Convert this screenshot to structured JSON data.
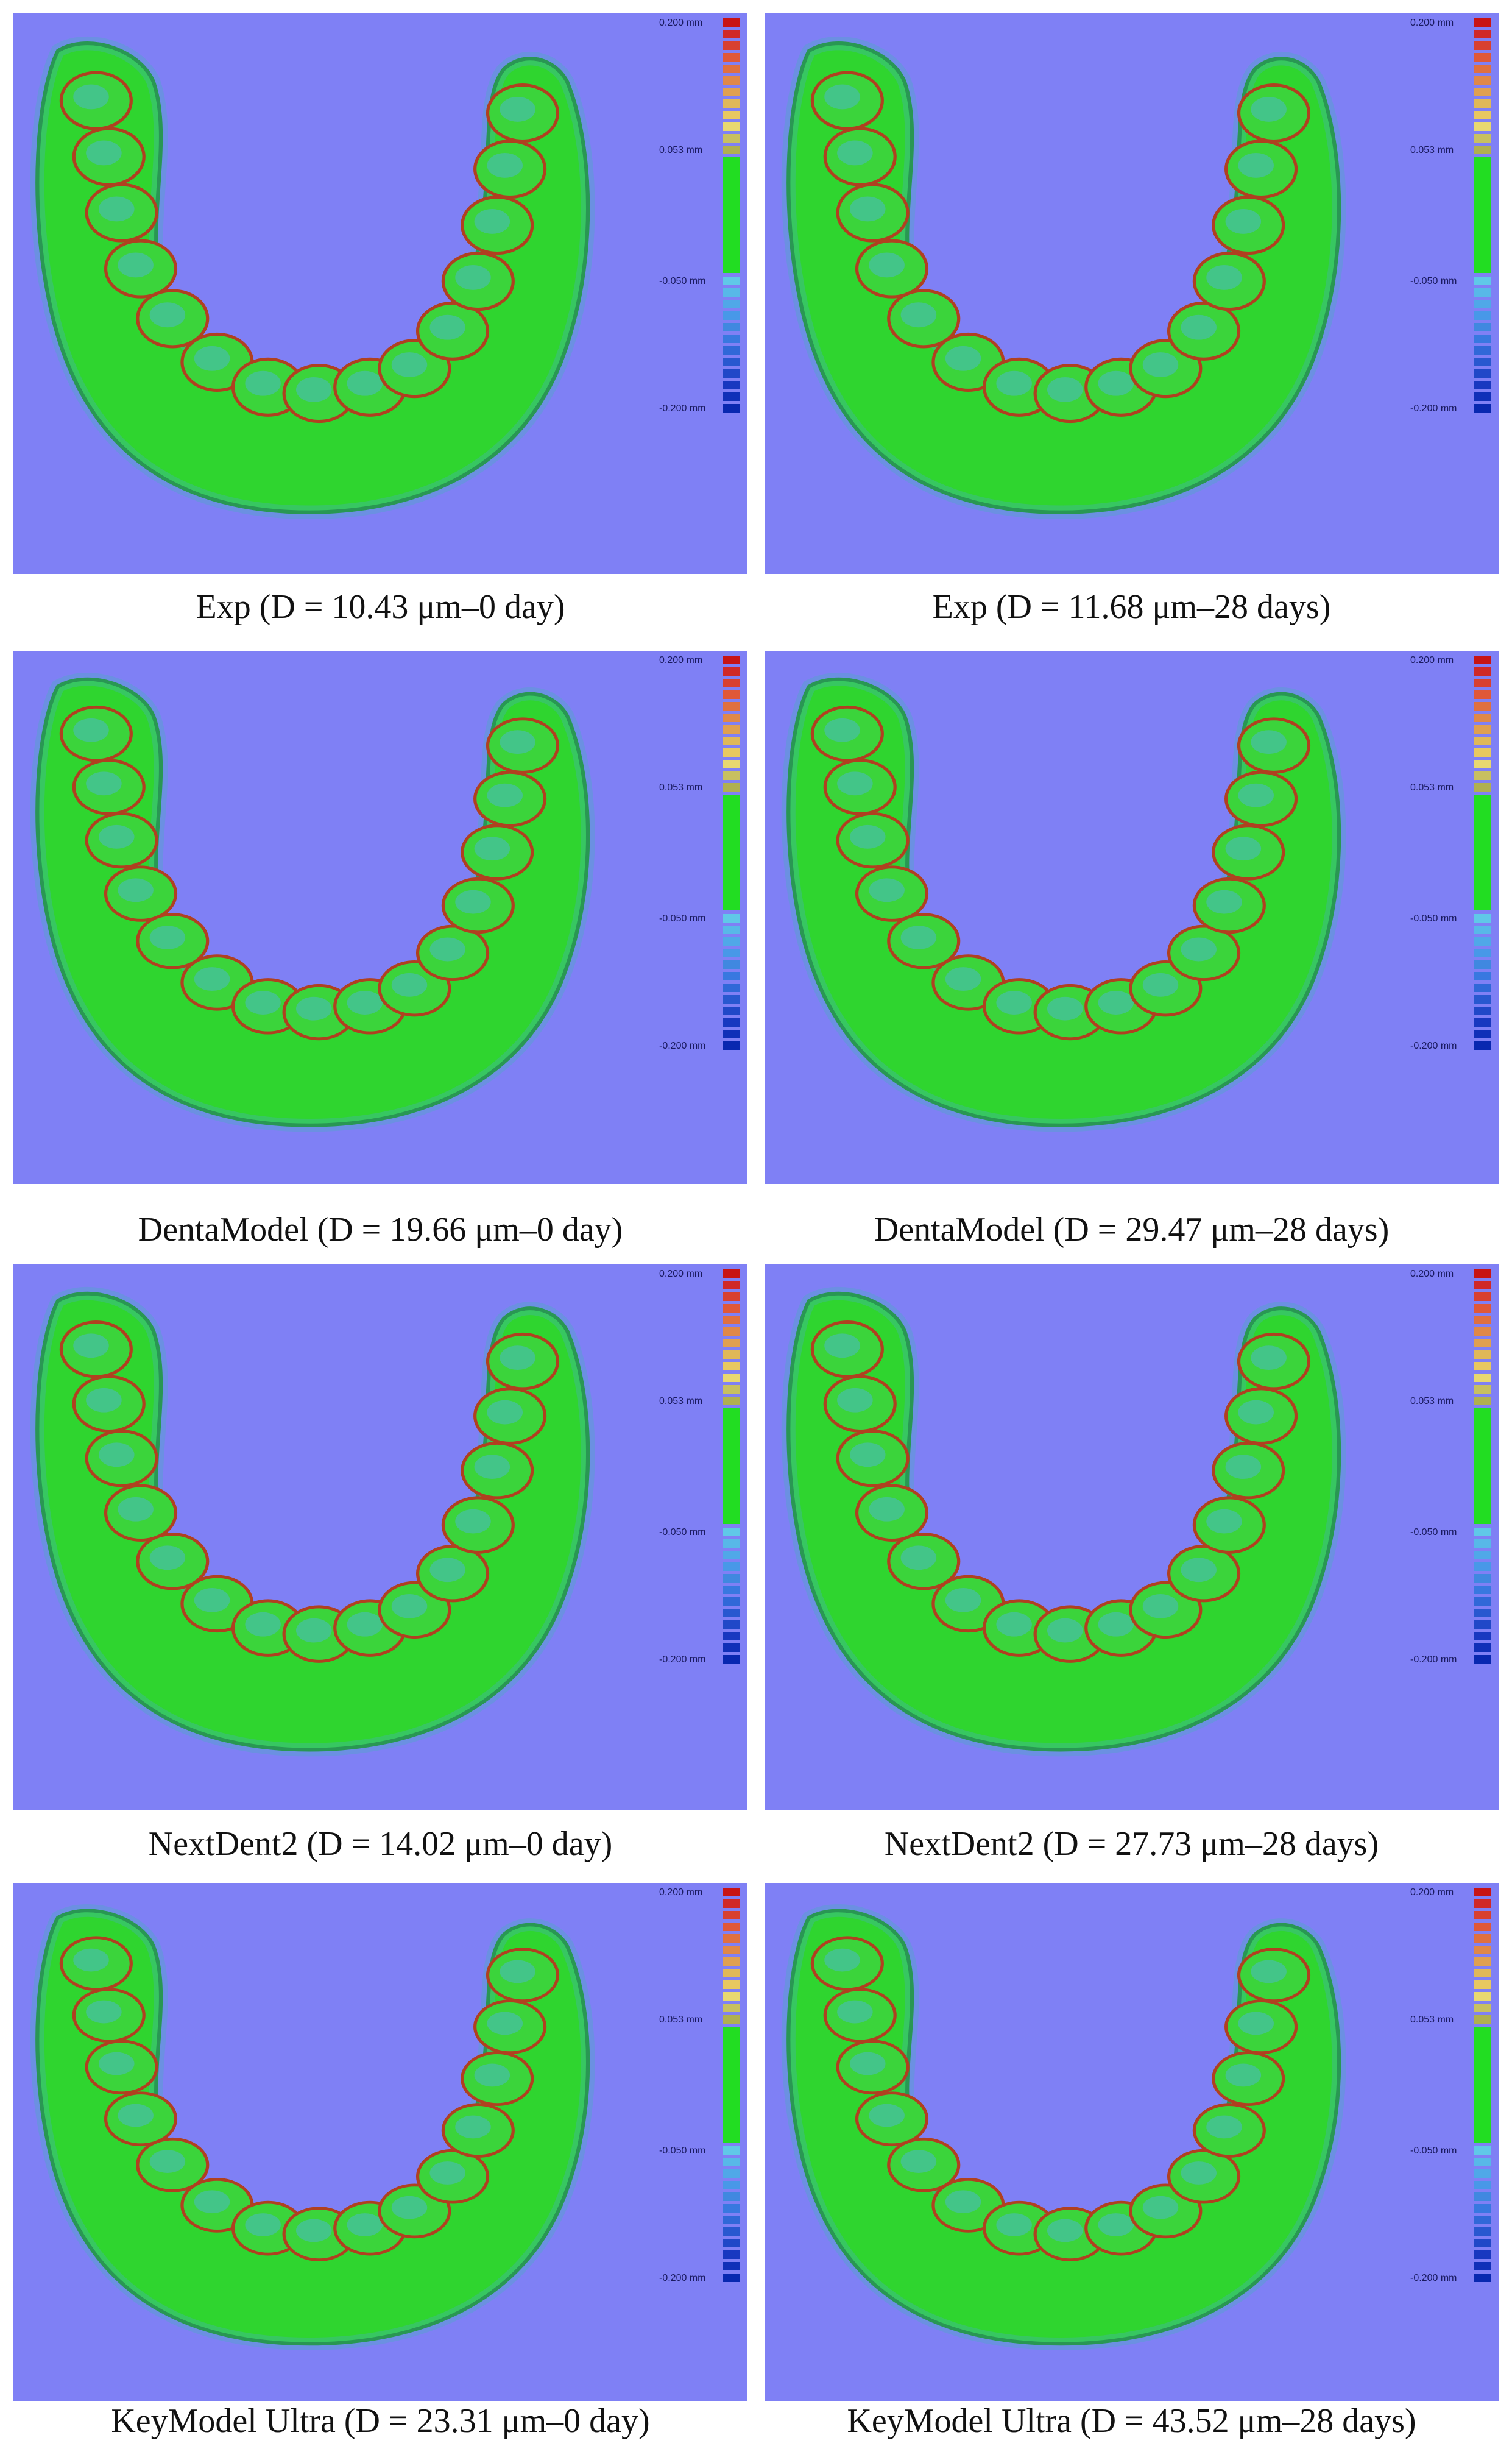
{
  "legend": {
    "unit": "mm",
    "top": "0.200",
    "pos_mid": "0.053",
    "neg_mid": "-0.050",
    "bottom": "-0.200",
    "colors": [
      "#c81414",
      "#d02828",
      "#d84030",
      "#e05838",
      "#e07040",
      "#e08848",
      "#e0a050",
      "#e0b858",
      "#e8c860",
      "#e8d870",
      "#c8c060",
      "#b0b050"
    ],
    "neg_colors": [
      "#60c8e8",
      "#58b8e8",
      "#50a8e8",
      "#4898e8",
      "#4088e0",
      "#3878e0",
      "#3068d8",
      "#2858d0",
      "#2048c8",
      "#1838c0",
      "#1030b8",
      "#0828b0"
    ],
    "tolerance_color": "#22dd22"
  },
  "panels": [
    {
      "caption": "Exp (D = 10.43 μm–0 day)"
    },
    {
      "caption": "Exp (D = 11.68 μm–28 days)"
    },
    {
      "caption": "DentaModel (D = 19.66 μm–0 day)"
    },
    {
      "caption": "DentaModel (D = 29.47 μm–28 days)"
    },
    {
      "caption": "NextDent2 (D = 14.02 μm–0 day)"
    },
    {
      "caption": "NextDent2 (D = 27.73 μm–28 days)"
    },
    {
      "caption": "KeyModel Ultra (D = 23.31 μm–0 day)"
    },
    {
      "caption": "KeyModel Ultra (D = 43.52 μm–28 days)"
    }
  ]
}
